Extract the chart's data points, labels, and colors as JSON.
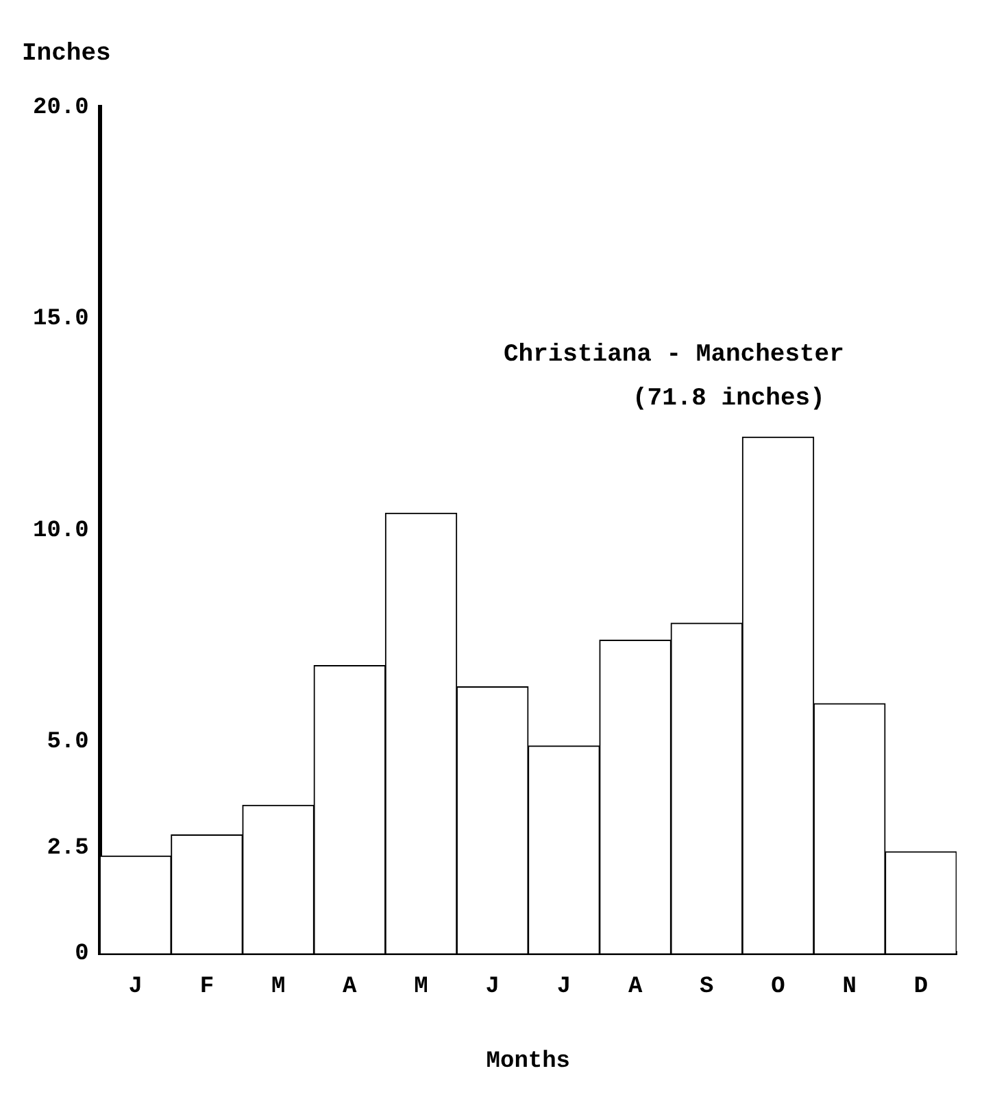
{
  "chart_data": {
    "type": "bar",
    "ylabel": "Inches",
    "xlabel": "Months",
    "annotations": [
      "Christiana - Manchester",
      "(71.8 inches)"
    ],
    "categories": [
      "J",
      "F",
      "M",
      "A",
      "M",
      "J",
      "J",
      "A",
      "S",
      "O",
      "N",
      "D"
    ],
    "values": [
      2.3,
      2.8,
      3.5,
      6.8,
      10.4,
      6.3,
      4.9,
      7.4,
      7.8,
      12.2,
      5.9,
      2.4
    ],
    "color": "#ffffff",
    "ylim": [
      0,
      20
    ],
    "yticks": [
      0,
      2.5,
      {
        "value": 5,
        "label": "5.0"
      },
      {
        "value": 10,
        "label": "10.0"
      },
      {
        "value": 15,
        "label": "15.0"
      },
      {
        "value": 20,
        "label": "20.0"
      }
    ],
    "grid": false,
    "legend": false
  }
}
